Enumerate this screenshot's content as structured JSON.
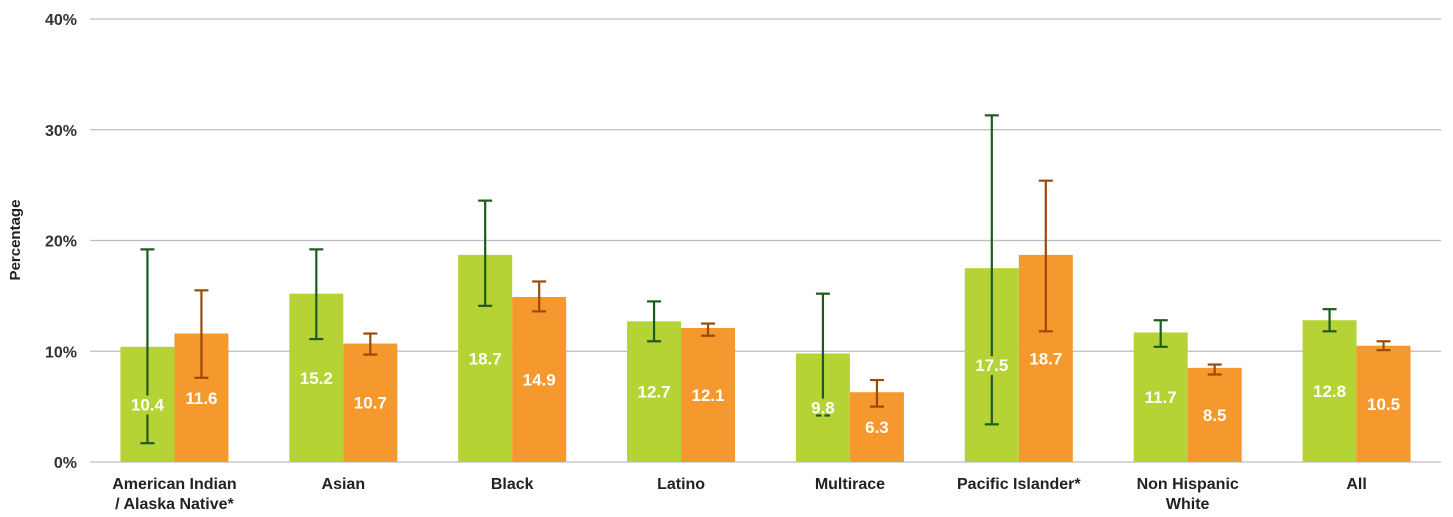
{
  "chart_data": {
    "type": "bar",
    "title": "",
    "ylabel": "Percentage",
    "xlabel": "",
    "ylim": [
      0,
      40
    ],
    "yticks": [
      {
        "value": 0,
        "label": "0%"
      },
      {
        "value": 10,
        "label": "10%"
      },
      {
        "value": 20,
        "label": "20%"
      },
      {
        "value": 30,
        "label": "30%"
      },
      {
        "value": 40,
        "label": "40%"
      }
    ],
    "grid": true,
    "categories": [
      [
        "American Indian",
        "/ Alaska Native*"
      ],
      [
        "Asian"
      ],
      [
        "Black"
      ],
      [
        "Latino"
      ],
      [
        "Multirace"
      ],
      [
        "Pacific Islander*"
      ],
      [
        "Non Hispanic",
        "White"
      ],
      [
        "All"
      ]
    ],
    "series": [
      {
        "color": "#b5d334",
        "error_color": "#1e5a1e",
        "values": [
          10.4,
          15.2,
          18.7,
          12.7,
          9.8,
          17.5,
          11.7,
          12.8
        ],
        "labels": [
          "10.4",
          "15.2",
          "18.7",
          "12.7",
          "9.8",
          "17.5",
          "11.7",
          "12.8"
        ],
        "error_low": [
          1.7,
          11.1,
          14.1,
          10.9,
          4.2,
          3.4,
          10.4,
          11.8
        ],
        "error_high": [
          19.2,
          19.2,
          23.6,
          14.5,
          15.2,
          31.3,
          12.8,
          13.8
        ]
      },
      {
        "color": "#f5982d",
        "error_color": "#9c4a0a",
        "values": [
          11.6,
          10.7,
          14.9,
          12.1,
          6.3,
          18.7,
          8.5,
          10.5
        ],
        "labels": [
          "11.6",
          "10.7",
          "14.9",
          "12.1",
          "6.3",
          "18.7",
          "8.5",
          "10.5"
        ],
        "error_low": [
          7.6,
          9.7,
          13.6,
          11.4,
          5.0,
          11.8,
          7.9,
          10.1
        ],
        "error_high": [
          15.5,
          11.6,
          16.3,
          12.5,
          7.4,
          25.4,
          8.8,
          10.9
        ]
      }
    ]
  }
}
